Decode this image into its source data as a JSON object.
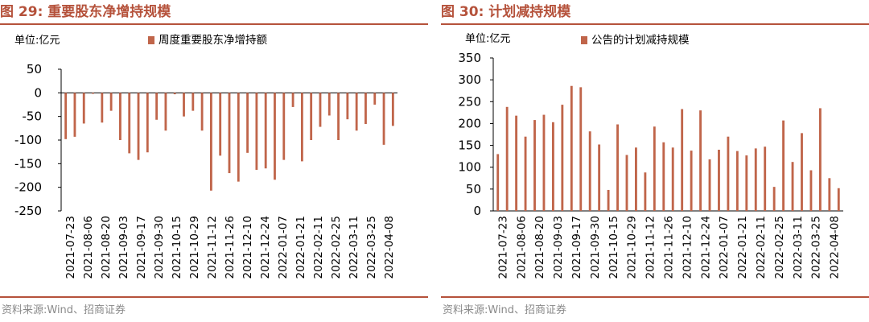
{
  "colors": {
    "accent": "#b5523b",
    "bar": "#c0654a",
    "source": "#8a8a8a"
  },
  "left": {
    "title": "图 29:  重要股东净增持规模",
    "source": "资料来源:Wind、招商证券",
    "unit_label": "单位:亿元"
  },
  "right": {
    "title": "图 30:  计划减持规模",
    "source": "资料来源:Wind、招商证券",
    "unit_label": "单位:亿元"
  },
  "chart_data": [
    {
      "type": "bar",
      "title": "重要股东净增持规模",
      "unit": "亿元",
      "legend": "周度重要股东净增持额",
      "ylim": [
        -250,
        50
      ],
      "yticks": [
        50,
        0,
        -50,
        -100,
        -150,
        -200,
        -250
      ],
      "tick_labels": [
        "2021-07-23",
        "2021-08-06",
        "2021-08-20",
        "2021-09-03",
        "2021-09-17",
        "2021-09-30",
        "2021-10-15",
        "2021-10-29",
        "2021-11-12",
        "2021-11-26",
        "2021-12-10",
        "2021-12-24",
        "2022-01-07",
        "2022-01-21",
        "2022-02-11",
        "2022-02-25",
        "2022-03-11",
        "2022-03-25",
        "2022-04-08"
      ],
      "values": [
        -98,
        -93,
        -65,
        -2,
        -63,
        -38,
        -100,
        -128,
        -142,
        -126,
        -57,
        -80,
        -3,
        -50,
        -38,
        -80,
        -207,
        -133,
        -170,
        -188,
        -127,
        -163,
        -160,
        -184,
        -142,
        -30,
        -145,
        -100,
        -72,
        -48,
        -100,
        -56,
        -80,
        -66,
        -25,
        -110,
        -70
      ]
    },
    {
      "type": "bar",
      "title": "计划减持规模",
      "unit": "亿元",
      "legend": "公告的计划减持规模",
      "ylim": [
        0,
        350
      ],
      "yticks": [
        350,
        300,
        250,
        200,
        150,
        100,
        50,
        0
      ],
      "tick_labels": [
        "2021-07-23",
        "2021-08-06",
        "2021-08-20",
        "2021-09-03",
        "2021-09-17",
        "2021-09-30",
        "2021-10-15",
        "2021-10-29",
        "2021-11-12",
        "2021-11-26",
        "2021-12-10",
        "2021-12-24",
        "2022-01-07",
        "2022-01-21",
        "2022-02-11",
        "2022-02-25",
        "2022-03-11",
        "2022-03-25",
        "2022-04-08"
      ],
      "values": [
        130,
        238,
        218,
        170,
        208,
        220,
        203,
        243,
        286,
        283,
        182,
        152,
        48,
        198,
        128,
        145,
        88,
        193,
        157,
        145,
        233,
        138,
        230,
        118,
        140,
        170,
        137,
        127,
        143,
        147,
        55,
        207,
        112,
        178,
        93,
        235,
        75,
        52
      ]
    }
  ]
}
